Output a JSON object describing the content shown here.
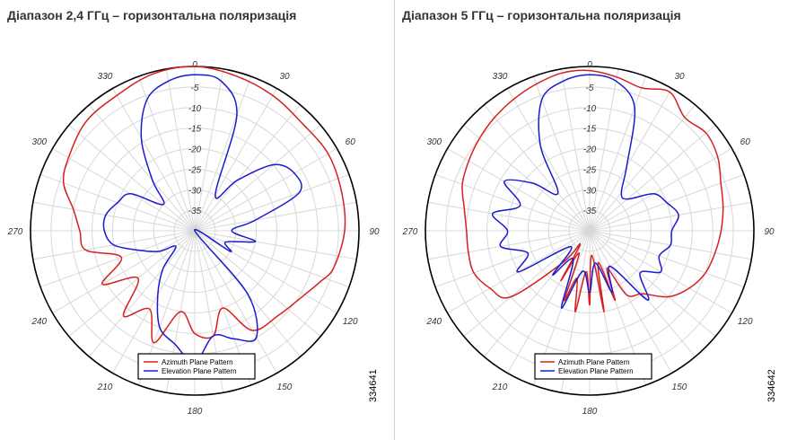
{
  "chart_data": [
    {
      "type": "polar-line",
      "title": "Діапазон 2,4 ГГц – горизонтальна поляризація",
      "r_ticks": [
        "0",
        "-5",
        "-10",
        "-15",
        "-20",
        "-25",
        "-30",
        "-35"
      ],
      "r_range": [
        -40,
        0
      ],
      "angle_labels": [
        "0",
        "30",
        "60",
        "90",
        "120",
        "150",
        "180",
        "210",
        "240",
        "270",
        "300",
        "330"
      ],
      "grid": true,
      "legend_position": "bottom-center",
      "figure_id": "334641",
      "series": [
        {
          "name": "Azimuth Plane Pattern",
          "color": "#d42020",
          "angles": [
            0,
            15,
            30,
            45,
            60,
            75,
            90,
            105,
            112,
            120,
            135,
            150,
            160,
            170,
            180,
            190,
            200,
            210,
            220,
            230,
            240,
            250,
            260,
            270,
            280,
            290,
            300,
            315,
            330,
            345
          ],
          "values": [
            0,
            -1,
            -2,
            -3,
            -2.5,
            -3,
            -3.5,
            -5,
            -7,
            -9,
            -11,
            -12,
            -20,
            -14,
            -15,
            -20,
            -11,
            -18,
            -13,
            -22,
            -14,
            -21,
            -13,
            -12,
            -10,
            -6,
            -4.5,
            -2.5,
            -2,
            -0.5
          ]
        },
        {
          "name": "Elevation Plane Pattern",
          "color": "#1a1ad0",
          "angles": [
            0,
            10,
            20,
            30,
            40,
            50,
            60,
            70,
            80,
            90,
            100,
            110,
            120,
            130,
            140,
            150,
            160,
            170,
            180,
            190,
            200,
            210,
            220,
            230,
            240,
            250,
            260,
            270,
            280,
            290,
            300,
            310,
            320,
            330,
            340,
            350
          ],
          "values": [
            -2,
            -3,
            -10,
            -30,
            -24,
            -15,
            -12,
            -13,
            -25,
            -31,
            -25,
            -32,
            -30,
            -40,
            -20,
            -10,
            -12,
            -14,
            -8,
            -12,
            -15,
            -22,
            -28,
            -34,
            -30,
            -26,
            -20,
            -18,
            -18,
            -20,
            -22,
            -30,
            -24,
            -14,
            -6,
            -3
          ]
        }
      ]
    },
    {
      "type": "polar-line",
      "title": "Діапазон 5 ГГц – горизонтальна поляризація",
      "r_ticks": [
        "0",
        "-5",
        "-10",
        "-15",
        "-20",
        "-25",
        "-30",
        "-35"
      ],
      "r_range": [
        -40,
        0
      ],
      "angle_labels": [
        "0",
        "30",
        "60",
        "90",
        "120",
        "150",
        "180",
        "210",
        "240",
        "270",
        "300",
        "330"
      ],
      "grid": true,
      "legend_position": "bottom-center",
      "figure_id": "334642",
      "series": [
        {
          "name": "Azimuth Plane Pattern",
          "color": "#d42020",
          "angles": [
            0,
            10,
            20,
            30,
            40,
            50,
            60,
            70,
            80,
            90,
            100,
            110,
            120,
            130,
            140,
            150,
            155,
            160,
            165,
            170,
            175,
            180,
            185,
            190,
            195,
            200,
            205,
            210,
            215,
            220,
            230,
            240,
            250,
            260,
            270,
            280,
            290,
            300,
            310,
            320,
            330,
            340,
            350
          ],
          "values": [
            -1,
            -2,
            -3,
            -1,
            -4,
            -3,
            -4,
            -6,
            -7,
            -8,
            -9,
            -10,
            -12,
            -15,
            -20,
            -22,
            -30,
            -22,
            -32,
            -20,
            -34,
            -22,
            -30,
            -20,
            -28,
            -22,
            -34,
            -26,
            -36,
            -30,
            -15,
            -12,
            -10,
            -10,
            -10,
            -9,
            -7,
            -6,
            -5,
            -4,
            -3,
            -2,
            -1
          ]
        },
        {
          "name": "Elevation Plane Pattern",
          "color": "#1a1ad0",
          "angles": [
            0,
            10,
            20,
            30,
            40,
            50,
            60,
            70,
            80,
            90,
            100,
            110,
            120,
            130,
            140,
            150,
            160,
            170,
            180,
            190,
            200,
            210,
            220,
            230,
            240,
            250,
            260,
            270,
            280,
            290,
            300,
            310,
            320,
            330,
            340,
            350
          ],
          "values": [
            -2,
            -3,
            -8,
            -22,
            -28,
            -28,
            -22,
            -20,
            -18,
            -20,
            -20,
            -22,
            -20,
            -24,
            -18,
            -30,
            -24,
            -32,
            -25,
            -30,
            -20,
            -32,
            -26,
            -34,
            -20,
            -24,
            -18,
            -20,
            -16,
            -22,
            -16,
            -22,
            -28,
            -16,
            -6,
            -3
          ]
        }
      ]
    }
  ]
}
